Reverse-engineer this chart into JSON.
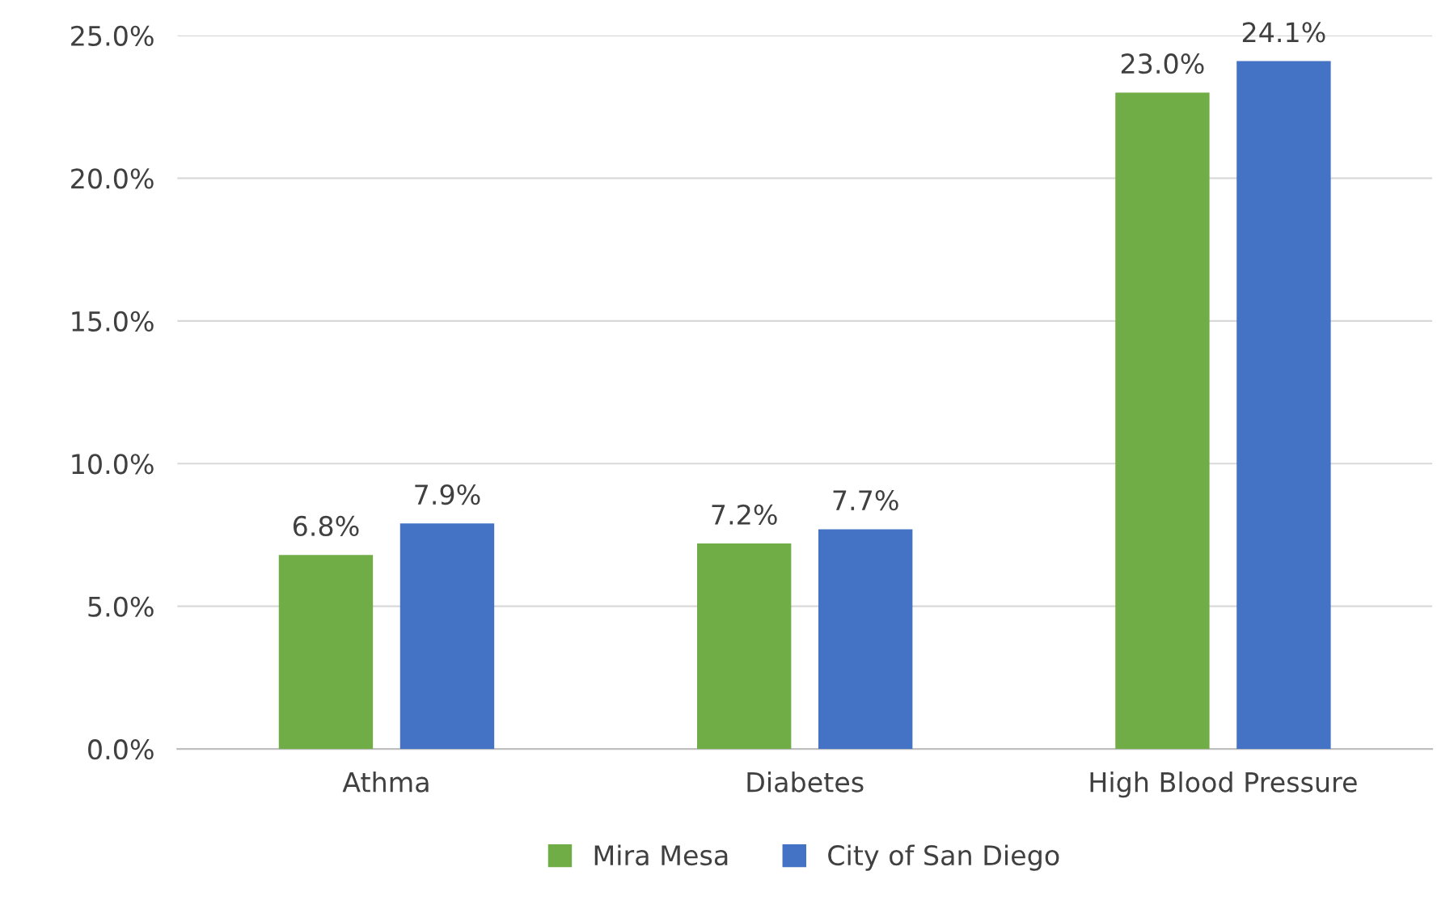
{
  "chart_data": {
    "type": "bar",
    "categories": [
      "Athma",
      "Diabetes",
      "High Blood Pressure"
    ],
    "series": [
      {
        "name": "Mira Mesa",
        "color": "#70ad47",
        "values": [
          6.8,
          7.2,
          23.0
        ],
        "value_labels": [
          "6.8%",
          "7.2%",
          "23.0%"
        ]
      },
      {
        "name": "City of San Diego",
        "color": "#4472c4",
        "values": [
          7.9,
          7.7,
          24.1
        ],
        "value_labels": [
          "7.9%",
          "7.7%",
          "24.1%"
        ]
      }
    ],
    "ylim": [
      0,
      25
    ],
    "yticks": [
      {
        "value": 0,
        "label": "0.0%"
      },
      {
        "value": 5,
        "label": "5.0%"
      },
      {
        "value": 10,
        "label": "10.0%"
      },
      {
        "value": 15,
        "label": "15.0%"
      },
      {
        "value": 20,
        "label": "20.0%"
      },
      {
        "value": 25,
        "label": "25.0%"
      }
    ],
    "grid": "y",
    "legend": "bottom"
  }
}
